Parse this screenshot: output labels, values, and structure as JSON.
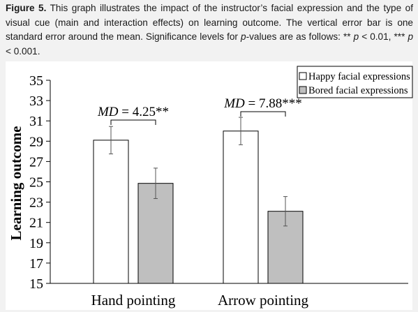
{
  "caption": {
    "label": "Figure 5.",
    "text_1": " This graph illustrates the impact of the instructor’s facial expression and the type of visual cue (main and interaction effects) on learning outcome. The vertical error bar is one standard error around the mean. Significance levels for ",
    "p_italic_1": "p",
    "text_2": "-values are as follows: ** ",
    "p_italic_2": "p",
    "text_3": " < 0.01, *** ",
    "p_italic_3": "p",
    "text_4": " < 0.001."
  },
  "chart_data": {
    "type": "bar",
    "categories": [
      "Hand pointing",
      "Arrow pointing"
    ],
    "series": [
      {
        "name": "Happy facial expressions",
        "values": [
          29.1,
          30.0
        ],
        "se": [
          1.35,
          1.35
        ],
        "color": "#ffffff"
      },
      {
        "name": "Bored facial expressions",
        "values": [
          24.85,
          22.1
        ],
        "se": [
          1.5,
          1.45
        ],
        "color": "#bfbfbf"
      }
    ],
    "ylabel": "Learning outcome",
    "ylim": [
      15,
      35
    ],
    "yticks": [
      15,
      17,
      19,
      21,
      23,
      25,
      27,
      29,
      31,
      33,
      35
    ],
    "legend_position": "top-right",
    "grid": false,
    "annotations": [
      {
        "category": "Hand pointing",
        "md_label": "MD",
        "md_value": " = 4.25**"
      },
      {
        "category": "Arrow pointing",
        "md_label": "MD",
        "md_value": " = 7.88***"
      }
    ]
  }
}
